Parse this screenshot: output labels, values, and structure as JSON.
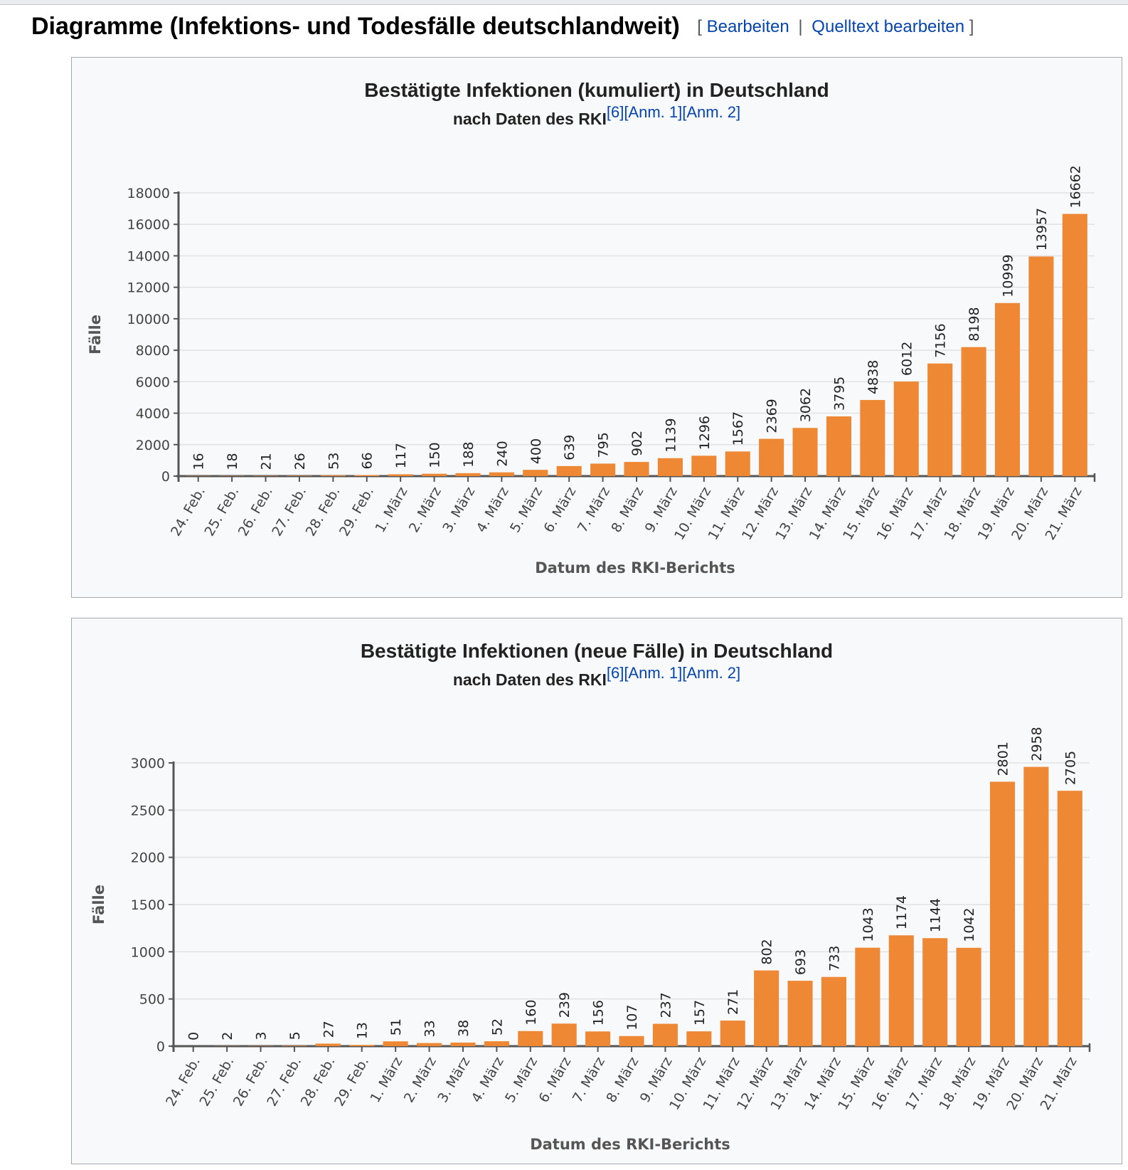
{
  "section": {
    "title": "Diagramme (Infektions- und Todesfälle deutschlandweit)",
    "edit_open": "[",
    "edit_link": "Bearbeiten",
    "edit_separator": "|",
    "source_link": "Quelltext bearbeiten",
    "edit_close": "]"
  },
  "colors": {
    "bar": "#ef8834",
    "axis": "#555555",
    "grid": "#e0e2e4",
    "link": "#0645ad"
  },
  "figures": [
    {
      "title": "Bestätigte Infektionen (kumuliert) in Deutschland",
      "subtitle": "nach Daten des RKI",
      "refs": [
        "[6]",
        "[Anm. 1]",
        "[Anm. 2]"
      ]
    },
    {
      "title": "Bestätigte Infektionen (neue Fälle) in Deutschland",
      "subtitle": "nach Daten des RKI",
      "refs": [
        "[6]",
        "[Anm. 1]",
        "[Anm. 2]"
      ]
    }
  ],
  "chart_data": [
    {
      "type": "bar",
      "title": "Bestätigte Infektionen (kumuliert) in Deutschland",
      "subtitle": "nach Daten des RKI",
      "xlabel": "Datum des RKI-Berichts",
      "ylabel": "Fälle",
      "ylim": [
        0,
        18000
      ],
      "yticks": [
        0,
        2000,
        4000,
        6000,
        8000,
        10000,
        12000,
        14000,
        16000,
        18000
      ],
      "grid": true,
      "categories": [
        "24. Feb.",
        "25. Feb.",
        "26. Feb.",
        "27. Feb.",
        "28. Feb.",
        "29. Feb.",
        "1. März",
        "2. März",
        "3. März",
        "4. März",
        "5. März",
        "6. März",
        "7. März",
        "8. März",
        "9. März",
        "10. März",
        "11. März",
        "12. März",
        "13. März",
        "14. März",
        "15. März",
        "16. März",
        "17. März",
        "18. März",
        "19. März",
        "20. März",
        "21. März"
      ],
      "values": [
        16,
        18,
        21,
        26,
        53,
        66,
        117,
        150,
        188,
        240,
        400,
        639,
        795,
        902,
        1139,
        1296,
        1567,
        2369,
        3062,
        3795,
        4838,
        6012,
        7156,
        8198,
        10999,
        13957,
        16662
      ]
    },
    {
      "type": "bar",
      "title": "Bestätigte Infektionen (neue Fälle) in Deutschland",
      "subtitle": "nach Daten des RKI",
      "xlabel": "Datum des RKI-Berichts",
      "ylabel": "Fälle",
      "ylim": [
        0,
        3000
      ],
      "yticks": [
        0,
        500,
        1000,
        1500,
        2000,
        2500,
        3000
      ],
      "grid": true,
      "categories": [
        "24. Feb.",
        "25. Feb.",
        "26. Feb.",
        "27. Feb.",
        "28. Feb.",
        "29. Feb.",
        "1. März",
        "2. März",
        "3. März",
        "4. März",
        "5. März",
        "6. März",
        "7. März",
        "8. März",
        "9. März",
        "10. März",
        "11. März",
        "12. März",
        "13. März",
        "14. März",
        "15. März",
        "16. März",
        "17. März",
        "18. März",
        "19. März",
        "20. März",
        "21. März"
      ],
      "values": [
        0,
        2,
        3,
        5,
        27,
        13,
        51,
        33,
        38,
        52,
        160,
        239,
        156,
        107,
        237,
        157,
        271,
        802,
        693,
        733,
        1043,
        1174,
        1144,
        1042,
        2801,
        2958,
        2705
      ]
    }
  ]
}
